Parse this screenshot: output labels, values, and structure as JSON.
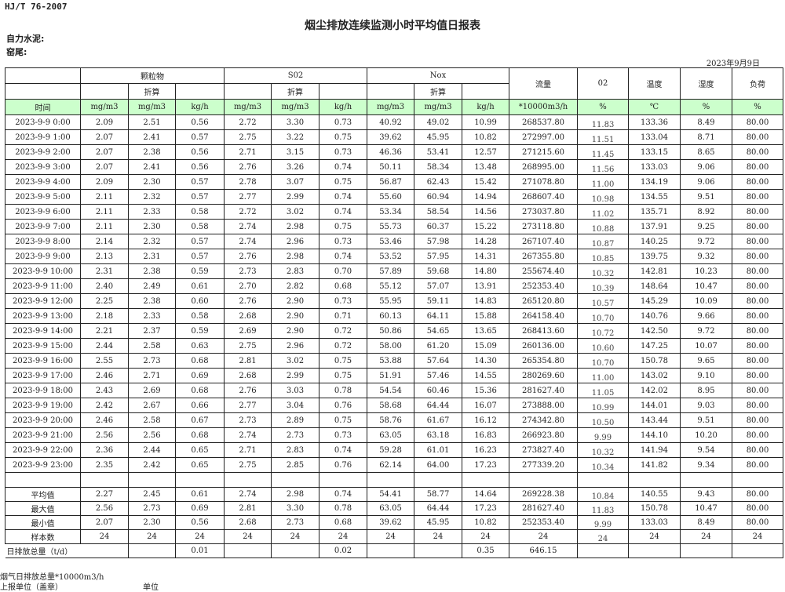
{
  "header": {
    "standard": "HJ/T  76-2007",
    "title": "烟尘排放连续监测小时平均值日报表",
    "company": "自力水泥:",
    "kiln": "窑尾:",
    "date": "2023年9月9日"
  },
  "groups": {
    "particulate": "颗粒物",
    "so2": "S02",
    "nox": "Nox",
    "flow": "流量",
    "o2": "02",
    "temp": "温度",
    "humidity": "湿度",
    "load": "负荷",
    "converted": "折算"
  },
  "units": [
    "时间",
    "mg/m3",
    "mg/m3",
    "kg/h",
    "mg/m3",
    "mg/m3",
    "kg/h",
    "mg/m3",
    "mg/m3",
    "kg/h",
    "*10000m3/h",
    "%",
    "℃",
    "%",
    "%"
  ],
  "rows": [
    [
      "2023-9-9 0:00",
      "2.09",
      "2.51",
      "0.56",
      "2.72",
      "3.30",
      "0.73",
      "40.92",
      "49.02",
      "10.99",
      "268537.80",
      "11.83",
      "133.36",
      "8.49",
      "80.00"
    ],
    [
      "2023-9-9 1:00",
      "2.07",
      "2.41",
      "0.57",
      "2.75",
      "3.22",
      "0.75",
      "39.62",
      "45.95",
      "10.82",
      "272997.00",
      "11.51",
      "133.04",
      "8.71",
      "80.00"
    ],
    [
      "2023-9-9 2:00",
      "2.07",
      "2.38",
      "0.56",
      "2.71",
      "3.15",
      "0.73",
      "46.36",
      "53.41",
      "12.57",
      "271215.60",
      "11.45",
      "133.15",
      "8.65",
      "80.00"
    ],
    [
      "2023-9-9 3:00",
      "2.07",
      "2.41",
      "0.56",
      "2.76",
      "3.26",
      "0.74",
      "50.11",
      "58.34",
      "13.48",
      "268995.00",
      "11.56",
      "133.03",
      "9.06",
      "80.00"
    ],
    [
      "2023-9-9 4:00",
      "2.09",
      "2.30",
      "0.57",
      "2.78",
      "3.07",
      "0.75",
      "56.87",
      "62.43",
      "15.42",
      "271078.80",
      "11.00",
      "134.19",
      "9.06",
      "80.00"
    ],
    [
      "2023-9-9 5:00",
      "2.11",
      "2.32",
      "0.57",
      "2.77",
      "2.99",
      "0.74",
      "55.60",
      "60.94",
      "14.94",
      "268607.40",
      "10.98",
      "134.55",
      "9.51",
      "80.00"
    ],
    [
      "2023-9-9 6:00",
      "2.11",
      "2.33",
      "0.58",
      "2.72",
      "3.02",
      "0.74",
      "53.34",
      "58.54",
      "14.56",
      "273037.80",
      "11.02",
      "135.71",
      "8.92",
      "80.00"
    ],
    [
      "2023-9-9 7:00",
      "2.11",
      "2.30",
      "0.58",
      "2.74",
      "2.98",
      "0.75",
      "55.73",
      "60.37",
      "15.22",
      "273118.80",
      "10.88",
      "137.91",
      "9.25",
      "80.00"
    ],
    [
      "2023-9-9 8:00",
      "2.14",
      "2.32",
      "0.57",
      "2.74",
      "2.96",
      "0.73",
      "53.46",
      "57.98",
      "14.28",
      "267107.40",
      "10.87",
      "140.25",
      "9.72",
      "80.00"
    ],
    [
      "2023-9-9 9:00",
      "2.13",
      "2.31",
      "0.57",
      "2.76",
      "2.98",
      "0.74",
      "53.52",
      "57.95",
      "14.31",
      "267355.80",
      "10.85",
      "139.75",
      "9.32",
      "80.00"
    ],
    [
      "2023-9-9 10:00",
      "2.31",
      "2.38",
      "0.59",
      "2.73",
      "2.83",
      "0.70",
      "57.89",
      "59.68",
      "14.80",
      "255674.40",
      "10.32",
      "142.81",
      "10.23",
      "80.00"
    ],
    [
      "2023-9-9 11:00",
      "2.40",
      "2.49",
      "0.61",
      "2.70",
      "2.82",
      "0.68",
      "55.12",
      "57.07",
      "13.91",
      "252353.40",
      "10.39",
      "148.64",
      "10.47",
      "80.00"
    ],
    [
      "2023-9-9 12:00",
      "2.25",
      "2.38",
      "0.60",
      "2.76",
      "2.90",
      "0.73",
      "55.95",
      "59.11",
      "14.83",
      "265120.80",
      "10.57",
      "145.29",
      "10.09",
      "80.00"
    ],
    [
      "2023-9-9 13:00",
      "2.18",
      "2.33",
      "0.58",
      "2.68",
      "2.90",
      "0.71",
      "60.13",
      "64.11",
      "15.88",
      "264158.40",
      "10.70",
      "140.76",
      "9.66",
      "80.00"
    ],
    [
      "2023-9-9 14:00",
      "2.21",
      "2.37",
      "0.59",
      "2.69",
      "2.90",
      "0.72",
      "50.86",
      "54.65",
      "13.65",
      "268413.60",
      "10.72",
      "142.50",
      "9.72",
      "80.00"
    ],
    [
      "2023-9-9 15:00",
      "2.44",
      "2.58",
      "0.63",
      "2.75",
      "2.96",
      "0.72",
      "58.00",
      "61.20",
      "15.09",
      "260136.00",
      "10.60",
      "147.25",
      "10.07",
      "80.00"
    ],
    [
      "2023-9-9 16:00",
      "2.55",
      "2.73",
      "0.68",
      "2.81",
      "3.02",
      "0.75",
      "53.88",
      "57.64",
      "14.30",
      "265354.80",
      "10.70",
      "150.78",
      "9.65",
      "80.00"
    ],
    [
      "2023-9-9 17:00",
      "2.46",
      "2.71",
      "0.69",
      "2.68",
      "2.99",
      "0.75",
      "51.91",
      "57.46",
      "14.55",
      "280269.60",
      "11.00",
      "143.02",
      "9.10",
      "80.00"
    ],
    [
      "2023-9-9 18:00",
      "2.43",
      "2.69",
      "0.68",
      "2.76",
      "3.03",
      "0.78",
      "54.54",
      "60.46",
      "15.36",
      "281627.40",
      "11.05",
      "142.02",
      "8.95",
      "80.00"
    ],
    [
      "2023-9-9 19:00",
      "2.42",
      "2.67",
      "0.66",
      "2.77",
      "3.04",
      "0.76",
      "58.68",
      "64.44",
      "16.07",
      "273888.00",
      "10.99",
      "144.01",
      "9.03",
      "80.00"
    ],
    [
      "2023-9-9 20:00",
      "2.46",
      "2.58",
      "0.67",
      "2.73",
      "2.89",
      "0.75",
      "58.76",
      "61.67",
      "16.12",
      "274342.80",
      "10.50",
      "143.44",
      "9.51",
      "80.00"
    ],
    [
      "2023-9-9 21:00",
      "2.56",
      "2.56",
      "0.68",
      "2.74",
      "2.73",
      "0.73",
      "63.05",
      "63.18",
      "16.83",
      "266923.80",
      "9.99",
      "144.10",
      "10.20",
      "80.00"
    ],
    [
      "2023-9-9 22:00",
      "2.36",
      "2.44",
      "0.65",
      "2.71",
      "2.83",
      "0.74",
      "59.28",
      "61.01",
      "16.23",
      "273827.40",
      "10.32",
      "141.94",
      "9.54",
      "80.00"
    ],
    [
      "2023-9-9 23:00",
      "2.35",
      "2.42",
      "0.65",
      "2.75",
      "2.85",
      "0.76",
      "62.14",
      "64.00",
      "17.23",
      "277339.20",
      "10.34",
      "141.82",
      "9.34",
      "80.00"
    ]
  ],
  "stats": [
    [
      "平均值",
      "2.27",
      "2.45",
      "0.61",
      "2.74",
      "2.98",
      "0.74",
      "54.41",
      "58.77",
      "14.64",
      "269228.38",
      "10.84",
      "140.55",
      "9.43",
      "80.00"
    ],
    [
      "最大值",
      "2.56",
      "2.73",
      "0.69",
      "2.81",
      "3.30",
      "0.78",
      "63.05",
      "64.44",
      "17.23",
      "281627.40",
      "11.83",
      "150.78",
      "10.47",
      "80.00"
    ],
    [
      "最小值",
      "2.07",
      "2.30",
      "0.56",
      "2.68",
      "2.73",
      "0.68",
      "39.62",
      "45.95",
      "10.82",
      "252353.40",
      "9.99",
      "133.03",
      "8.49",
      "80.00"
    ],
    [
      "样本数",
      "24",
      "24",
      "24",
      "24",
      "24",
      "24",
      "24",
      "24",
      "24",
      "24",
      "24",
      "24",
      "24",
      "24"
    ]
  ],
  "daily_total": {
    "label": "日排放总量（t/d）",
    "values": [
      "",
      "0.01",
      "",
      "",
      "0.02",
      "",
      "",
      "0.35",
      "646.15",
      "",
      "",
      "",
      ""
    ]
  },
  "footer": {
    "flue_gas_total": "烟气日排放总量*10000m3/h",
    "reporter": "上报单位（盖章）",
    "unit": "单位"
  }
}
